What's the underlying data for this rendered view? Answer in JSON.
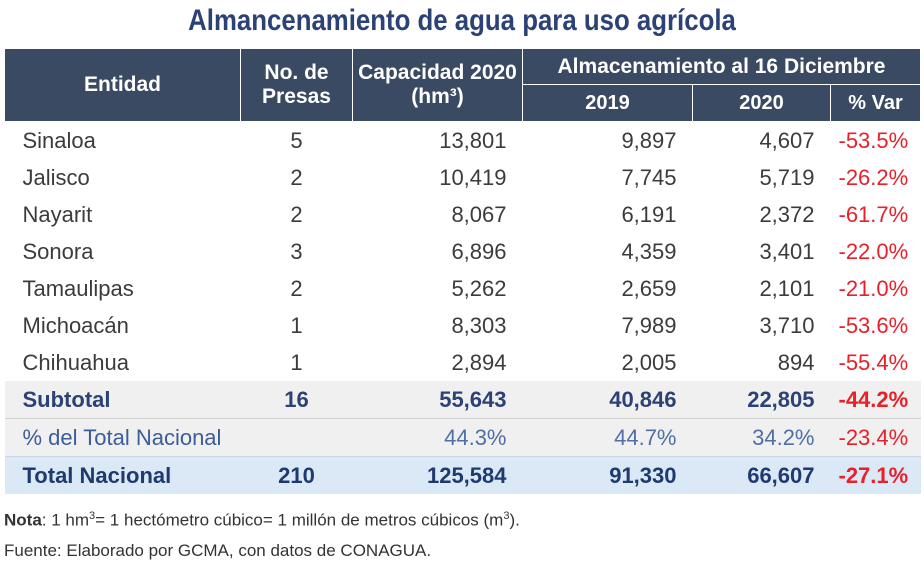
{
  "title": "Almancenamiento de agua para uso agrícola",
  "header": {
    "entidad": "Entidad",
    "presas_line1": "No. de",
    "presas_line2": "Presas",
    "capacidad_line1": "Capacidad  2020",
    "capacidad_line2": "(hm³)",
    "almacenamiento": "Almacenamiento al 16 Diciembre",
    "y2019": "2019",
    "y2020": "2020",
    "var": "% Var"
  },
  "rows": [
    {
      "entidad": "Sinaloa",
      "presas": "5",
      "capacidad": "13,801",
      "y2019": "9,897",
      "y2020": "4,607",
      "var": "-53.5%"
    },
    {
      "entidad": "Jalisco",
      "presas": "2",
      "capacidad": "10,419",
      "y2019": "7,745",
      "y2020": "5,719",
      "var": "-26.2%"
    },
    {
      "entidad": "Nayarit",
      "presas": "2",
      "capacidad": "8,067",
      "y2019": "6,191",
      "y2020": "2,372",
      "var": "-61.7%"
    },
    {
      "entidad": "Sonora",
      "presas": "3",
      "capacidad": "6,896",
      "y2019": "4,359",
      "y2020": "3,401",
      "var": "-22.0%"
    },
    {
      "entidad": "Tamaulipas",
      "presas": "2",
      "capacidad": "5,262",
      "y2019": "2,659",
      "y2020": "2,101",
      "var": "-21.0%"
    },
    {
      "entidad": "Michoacán",
      "presas": "1",
      "capacidad": "8,303",
      "y2019": "7,989",
      "y2020": "3,710",
      "var": "-53.6%"
    },
    {
      "entidad": "Chihuahua",
      "presas": "1",
      "capacidad": "2,894",
      "y2019": "2,005",
      "y2020": "894",
      "var": "-55.4%"
    }
  ],
  "subtotal": {
    "entidad": "Subtotal",
    "presas": "16",
    "capacidad": "55,643",
    "y2019": "40,846",
    "y2020": "22,805",
    "var": "-44.2%"
  },
  "pct_nacional": {
    "entidad": "% del Total Nacional",
    "presas": "",
    "capacidad": "44.3%",
    "y2019": "44.7%",
    "y2020": "34.2%",
    "var": "-23.4%"
  },
  "total": {
    "entidad": "Total Nacional",
    "presas": "210",
    "capacidad": "125,584",
    "y2019": "91,330",
    "y2020": "66,607",
    "var": "-27.1%"
  },
  "note": {
    "label": "Nota",
    "part1": ": 1 hm",
    "sup1": "3",
    "part2": "= 1 hectómetro cúbico= 1 millón de metros cúbicos (m",
    "sup2": "3",
    "part3": ")."
  },
  "source": "Fuente: Elaborado por GCMA, con datos de CONAGUA."
}
